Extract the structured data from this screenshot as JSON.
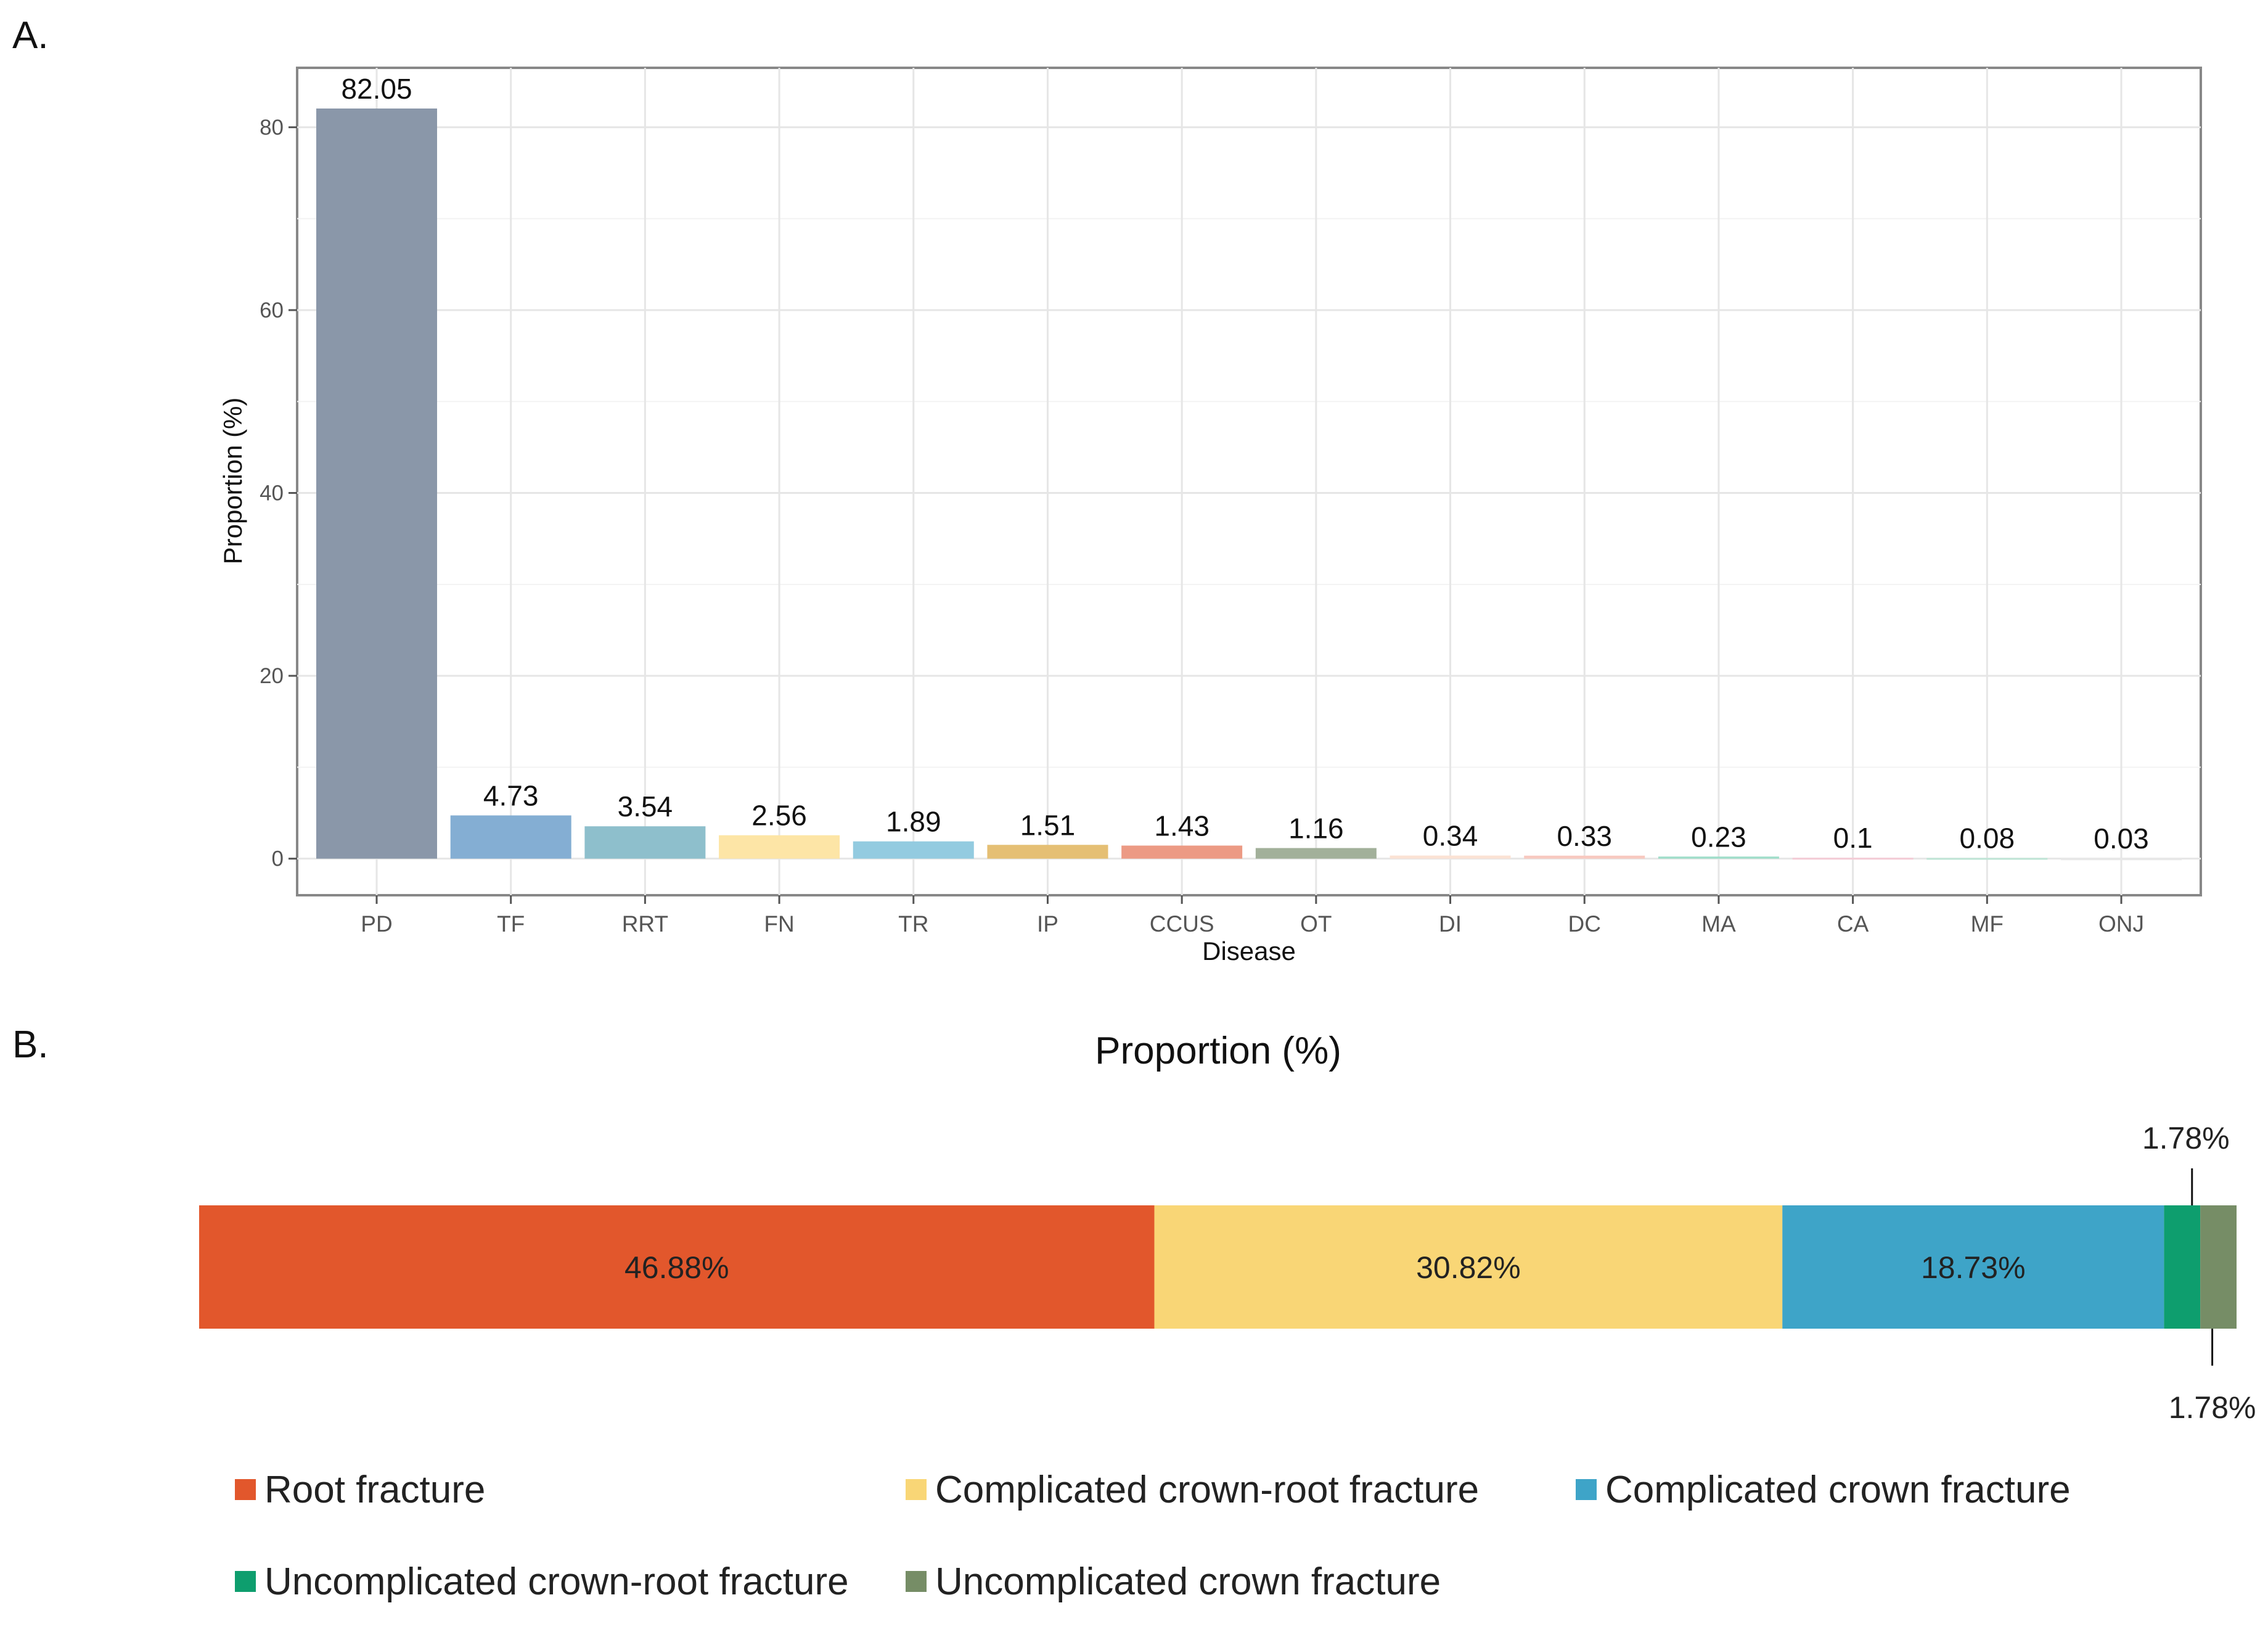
{
  "chart_data": [
    {
      "panel": "A.",
      "type": "bar",
      "title": "",
      "xlabel": "Disease",
      "ylabel": "Proportion (%)",
      "ylim": [
        -4,
        86.5
      ],
      "yticks": [
        0,
        20,
        40,
        60,
        80
      ],
      "grid": true,
      "categories": [
        "PD",
        "TF",
        "RRT",
        "FN",
        "TR",
        "IP",
        "CCUS",
        "OT",
        "DI",
        "DC",
        "MA",
        "CA",
        "MF",
        "ONJ"
      ],
      "values": [
        82.05,
        4.73,
        3.54,
        2.56,
        1.89,
        1.51,
        1.43,
        1.16,
        0.34,
        0.33,
        0.23,
        0.1,
        0.08,
        0.03
      ],
      "value_labels": [
        "82.05",
        "4.73",
        "3.54",
        "2.56",
        "1.89",
        "1.51",
        "1.43",
        "1.16",
        "0.34",
        "0.33",
        "0.23",
        "0.1",
        "0.08",
        "0.03"
      ],
      "colors": [
        "#8a97a9",
        "#84aed3",
        "#8ebfcc",
        "#fde5a6",
        "#93cbe0",
        "#e5bf74",
        "#ec9a84",
        "#a2b09a",
        "#fbe2d4",
        "#f8c9c0",
        "#9fddc9",
        "#f4ccd6",
        "#bfe5d6",
        "#e8e8e8"
      ]
    },
    {
      "panel": "B.",
      "type": "bar",
      "orientation": "horizontal-stacked",
      "title": "Proportion (%)",
      "legend": "bottom",
      "series": [
        {
          "name": "Root fracture",
          "value": 46.88,
          "label": "46.88%",
          "color": "#e2572c"
        },
        {
          "name": "Complicated crown-root fracture",
          "value": 30.82,
          "label": "30.82%",
          "color": "#f9d676"
        },
        {
          "name": "Complicated crown fracture",
          "value": 18.73,
          "label": "18.73%",
          "color": "#3ea4c8"
        },
        {
          "name": "Uncomplicated crown-root fracture",
          "value": 1.78,
          "label": "1.78%",
          "color": "#0e9e6e"
        },
        {
          "name": "Uncomplicated crown fracture",
          "value": 1.78,
          "label": "1.78%",
          "color": "#768d66"
        }
      ]
    }
  ]
}
